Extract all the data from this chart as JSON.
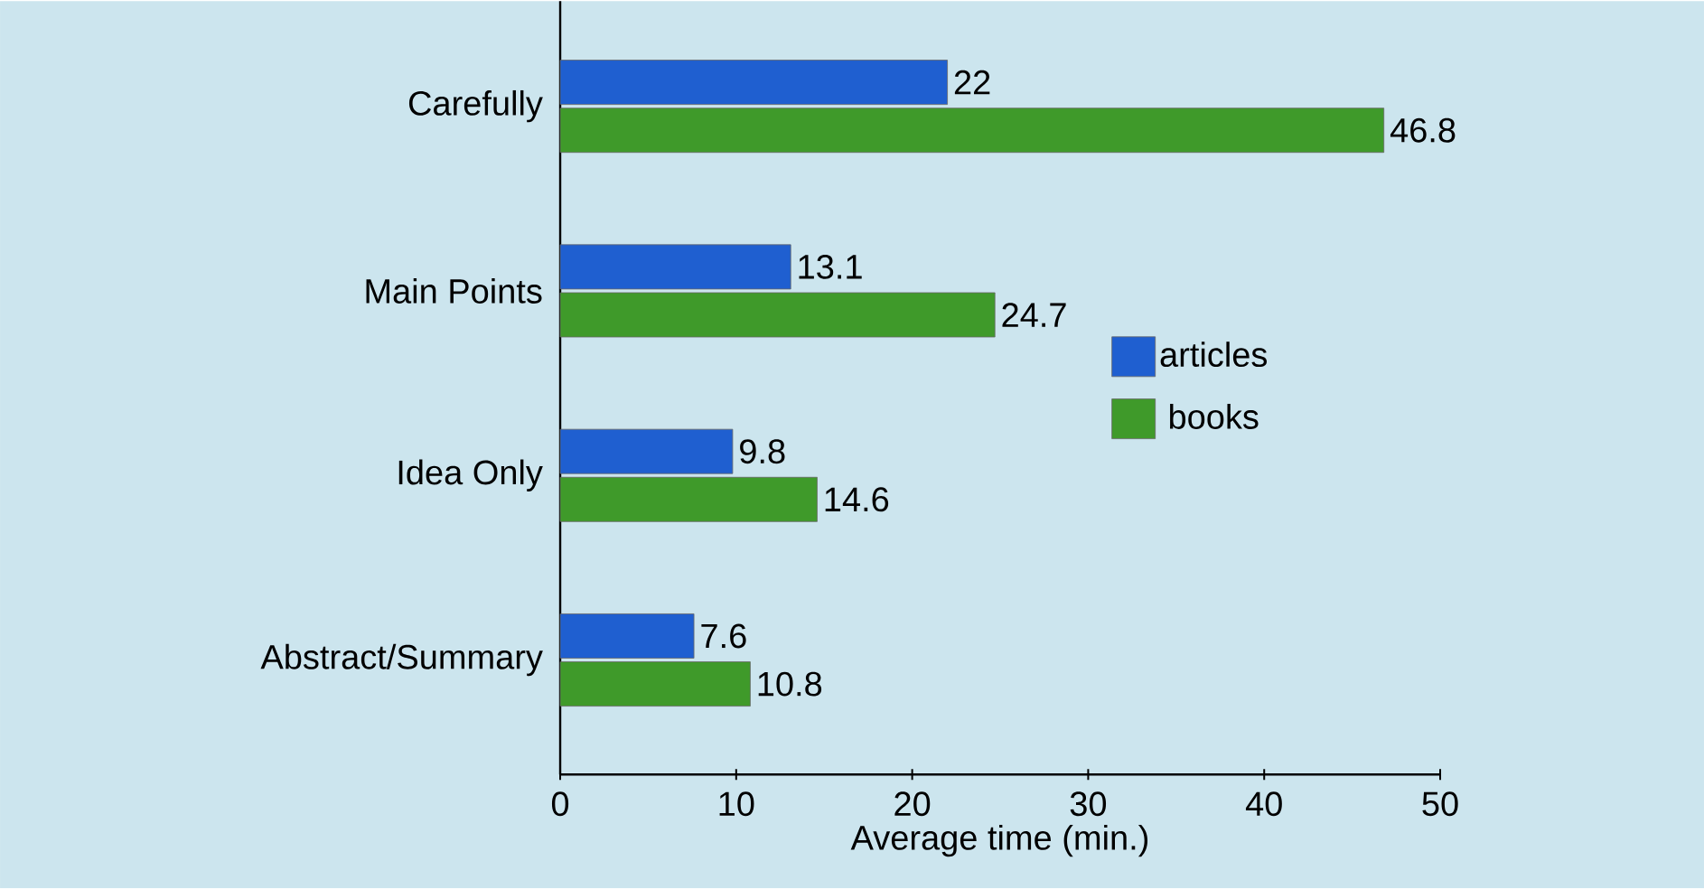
{
  "chart_data": {
    "type": "bar",
    "orientation": "horizontal",
    "categories": [
      "Carefully",
      "Main Points",
      "Idea Only",
      "Abstract/Summary"
    ],
    "series": [
      {
        "name": "articles",
        "color": "#1f5fd0",
        "values": [
          22,
          13.1,
          9.8,
          7.6
        ]
      },
      {
        "name": "books",
        "color": "#3f9a2a",
        "values": [
          46.8,
          24.7,
          14.6,
          10.8
        ]
      }
    ],
    "xlabel": "Average time (min.)",
    "xlim": [
      0,
      50
    ],
    "xticks": [
      0,
      10,
      20,
      30,
      40,
      50
    ],
    "data_labels": true,
    "legend": "right",
    "grid": false
  }
}
